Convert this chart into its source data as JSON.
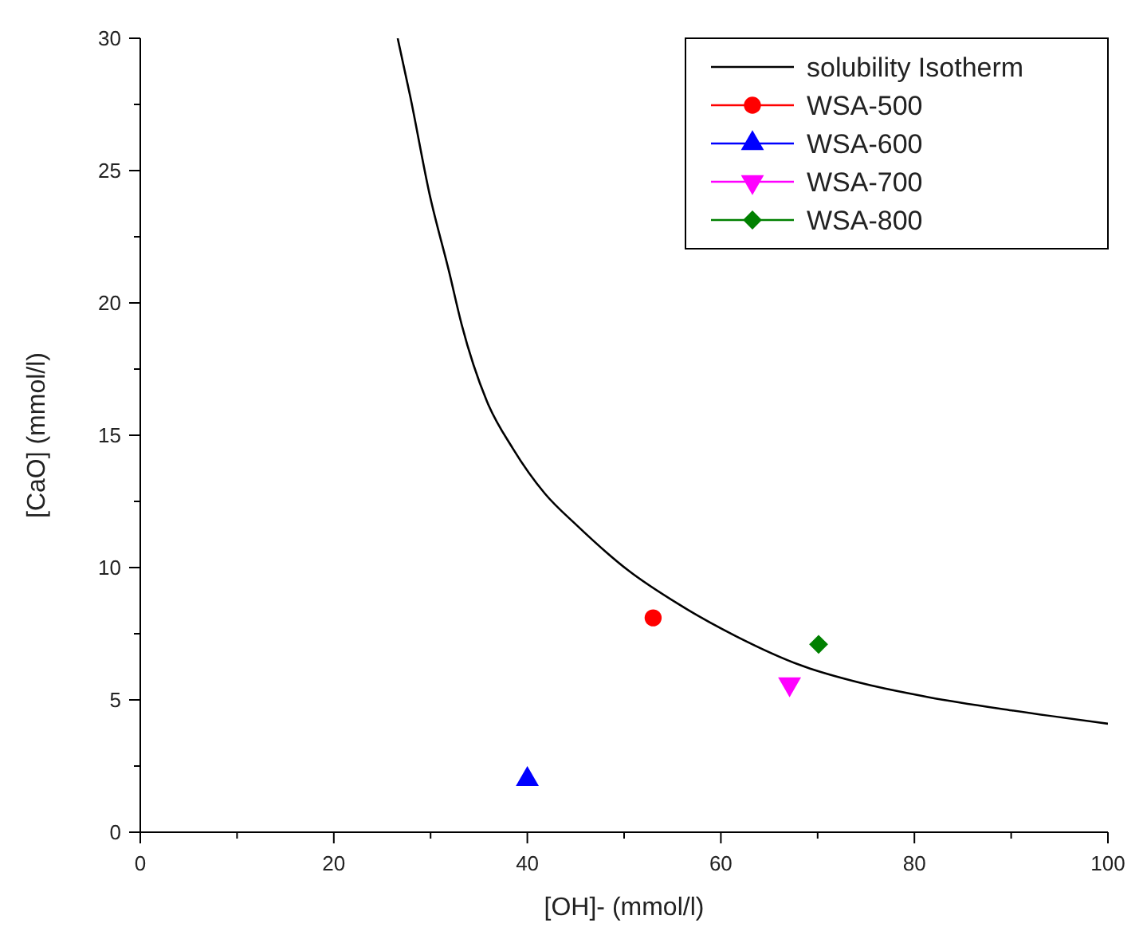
{
  "chart_data": {
    "type": "scatter",
    "xlabel": "[OH]- (mmol/l)",
    "ylabel": "[CaO] (mmol/l)",
    "xlim": [
      0,
      100
    ],
    "ylim": [
      0,
      30
    ],
    "xticks": [
      0,
      20,
      40,
      60,
      80,
      100
    ],
    "yticks": [
      0,
      5,
      10,
      15,
      20,
      25,
      30
    ],
    "grid": false,
    "legend": "top right",
    "series": [
      {
        "name": "solubility Isotherm",
        "type": "line",
        "color": "#000000",
        "marker": "none",
        "x": [
          26.6,
          27.9,
          29.9,
          31.9,
          33.2,
          35.8,
          38.5,
          41.8,
          45.1,
          50.4,
          55.7,
          61.6,
          68.3,
          74.9,
          81.5,
          90.1,
          100
        ],
        "values": [
          30,
          27.8,
          24.1,
          21.2,
          19.2,
          16.3,
          14.5,
          12.8,
          11.6,
          9.9,
          8.6,
          7.4,
          6.3,
          5.6,
          5.1,
          4.6,
          4.1
        ]
      },
      {
        "name": "WSA-500",
        "color": "#ff0000",
        "marker": "circle",
        "x": [
          53
        ],
        "values": [
          8.1
        ]
      },
      {
        "name": "WSA-600",
        "color": "#0000ff",
        "marker": "triangle",
        "x": [
          40
        ],
        "values": [
          2.0
        ]
      },
      {
        "name": "WSA-700",
        "color": "#ff00ff",
        "marker": "triangle-down",
        "x": [
          67.1
        ],
        "values": [
          5.6
        ]
      },
      {
        "name": "WSA-800",
        "color": "#008000",
        "marker": "diamond",
        "x": [
          70.1
        ],
        "values": [
          7.1
        ]
      }
    ]
  }
}
